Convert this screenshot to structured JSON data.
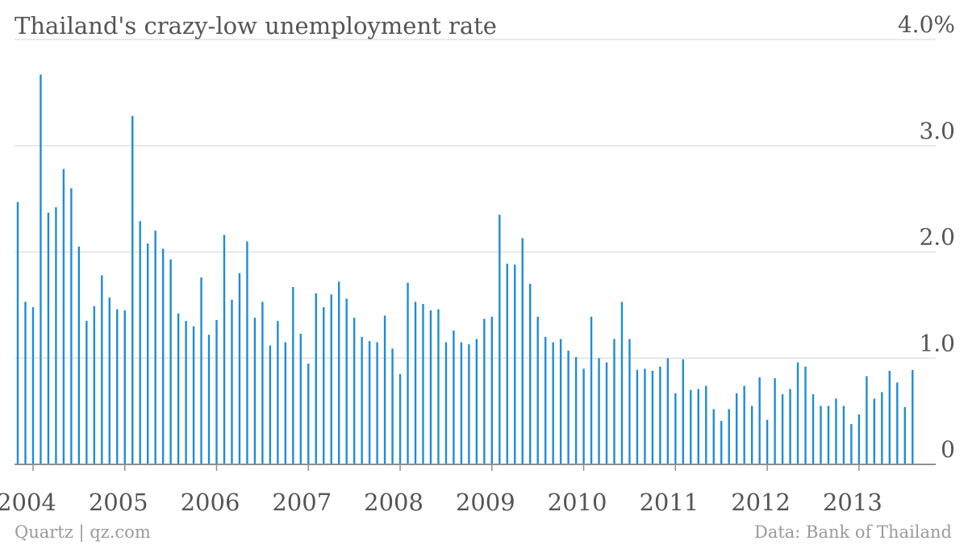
{
  "chart_data": {
    "type": "bar",
    "title": "Thailand's crazy-low unemployment rate",
    "y_unit": "%",
    "ylim": [
      0,
      4.0
    ],
    "y_ticks": [
      {
        "value": 0,
        "label": "0"
      },
      {
        "value": 1.0,
        "label": "1.0"
      },
      {
        "value": 2.0,
        "label": "2.0"
      },
      {
        "value": 3.0,
        "label": "3.0"
      },
      {
        "value": 4.0,
        "label": "4.0%"
      }
    ],
    "x_ticks": [
      "2004",
      "2005",
      "2006",
      "2007",
      "2008",
      "2009",
      "2010",
      "2011",
      "2012",
      "2013"
    ],
    "x_start": "2003-11",
    "frequency": "monthly",
    "grid": true,
    "bar_color": "#1f8dd6",
    "values": [
      2.47,
      1.53,
      1.48,
      3.67,
      2.37,
      2.42,
      2.78,
      2.6,
      2.05,
      1.35,
      1.49,
      1.78,
      1.57,
      1.46,
      1.45,
      3.28,
      2.29,
      2.08,
      2.2,
      2.03,
      1.93,
      1.42,
      1.35,
      1.3,
      1.76,
      1.22,
      1.36,
      2.16,
      1.55,
      1.8,
      2.1,
      1.38,
      1.53,
      1.12,
      1.35,
      1.15,
      1.67,
      1.23,
      0.95,
      1.61,
      1.48,
      1.6,
      1.72,
      1.56,
      1.38,
      1.2,
      1.16,
      1.15,
      1.4,
      1.09,
      0.85,
      1.71,
      1.53,
      1.51,
      1.45,
      1.46,
      1.15,
      1.26,
      1.15,
      1.13,
      1.18,
      1.37,
      1.39,
      2.35,
      1.89,
      1.88,
      2.13,
      1.7,
      1.39,
      1.2,
      1.15,
      1.18,
      1.07,
      1.01,
      0.9,
      1.39,
      1.0,
      0.96,
      1.18,
      1.53,
      1.18,
      0.89,
      0.9,
      0.88,
      0.92,
      1.0,
      0.67,
      0.99,
      0.7,
      0.71,
      0.74,
      0.52,
      0.41,
      0.52,
      0.67,
      0.74,
      0.55,
      0.82,
      0.42,
      0.81,
      0.66,
      0.71,
      0.96,
      0.92,
      0.66,
      0.55,
      0.55,
      0.62,
      0.55,
      0.38,
      0.47,
      0.83,
      0.62,
      0.68,
      0.88,
      0.77,
      0.54,
      0.89
    ]
  },
  "footer": {
    "source_left": "Quartz | qz.com",
    "source_right": "Data: Bank of Thailand"
  }
}
